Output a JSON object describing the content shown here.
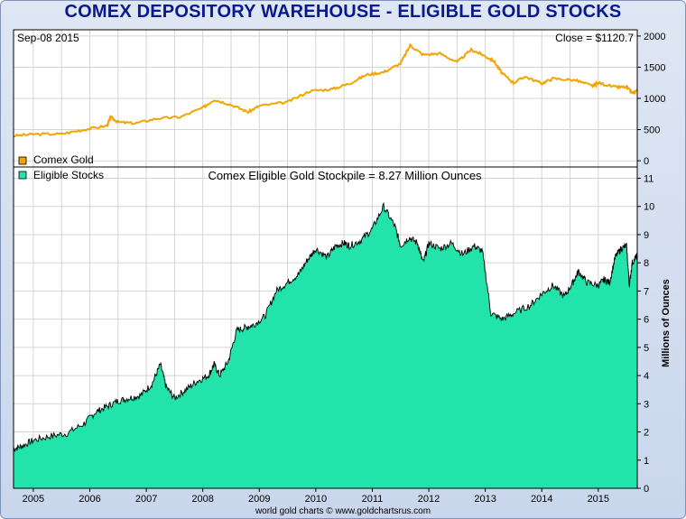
{
  "title": "COMEX DEPOSITORY WAREHOUSE - ELIGIBLE GOLD STOCKS",
  "footer": "world gold charts © www.goldchartsrus.com",
  "chart_data": [
    {
      "type": "line",
      "corner_left": "Sep-08  2015",
      "corner_right": "Close = $1120.7",
      "legend": "Comex Gold",
      "colors": {
        "series": "#f0a500"
      },
      "ylim": [
        -100,
        2100
      ],
      "y_ticks": [
        0,
        500,
        1000,
        1500,
        2000
      ],
      "xlim": [
        2004.65,
        2015.69
      ],
      "grid": true,
      "series": [
        {
          "name": "Comex Gold",
          "x": [
            2004.65,
            2005.0,
            2005.5,
            2005.9,
            2006.3,
            2006.37,
            2006.5,
            2006.8,
            2007.2,
            2007.6,
            2008.0,
            2008.2,
            2008.5,
            2008.8,
            2009.0,
            2009.5,
            2009.9,
            2010.3,
            2010.6,
            2010.9,
            2011.2,
            2011.5,
            2011.67,
            2011.9,
            2012.2,
            2012.5,
            2012.75,
            2012.95,
            2013.15,
            2013.3,
            2013.5,
            2013.7,
            2014.0,
            2014.2,
            2014.6,
            2014.9,
            2015.0,
            2015.3,
            2015.5,
            2015.6,
            2015.69
          ],
          "values": [
            400,
            425,
            430,
            500,
            560,
            700,
            620,
            600,
            680,
            700,
            850,
            980,
            900,
            780,
            880,
            940,
            1120,
            1150,
            1240,
            1380,
            1420,
            1560,
            1850,
            1700,
            1720,
            1580,
            1780,
            1700,
            1600,
            1400,
            1250,
            1350,
            1240,
            1320,
            1290,
            1200,
            1250,
            1180,
            1180,
            1090,
            1120
          ]
        }
      ]
    },
    {
      "type": "area",
      "title": "Comex Eligible Gold Stockpile = 8.27 Million Ounces",
      "legend": "Eligible Stocks",
      "ylabel": "Millions of Ounces",
      "colors": {
        "fill": "#22e3a9",
        "line": "#000000"
      },
      "ylim": [
        0,
        11.4
      ],
      "y_ticks": [
        0,
        1,
        2,
        3,
        4,
        5,
        6,
        7,
        8,
        9,
        10,
        11
      ],
      "x_ticks": [
        "2005",
        "2006",
        "2007",
        "2008",
        "2009",
        "2010",
        "2011",
        "2012",
        "2013",
        "2014",
        "2015"
      ],
      "xlim": [
        2004.65,
        2015.69
      ],
      "grid": true,
      "series": [
        {
          "name": "Eligible Stocks",
          "x": [
            2004.65,
            2004.8,
            2005.0,
            2005.3,
            2005.6,
            2005.9,
            2006.1,
            2006.3,
            2006.5,
            2006.7,
            2006.9,
            2007.1,
            2007.25,
            2007.35,
            2007.5,
            2007.7,
            2007.9,
            2008.1,
            2008.2,
            2008.3,
            2008.45,
            2008.6,
            2008.75,
            2008.9,
            2009.1,
            2009.3,
            2009.5,
            2009.7,
            2009.85,
            2010.0,
            2010.2,
            2010.35,
            2010.5,
            2010.6,
            2010.8,
            2011.0,
            2011.2,
            2011.4,
            2011.5,
            2011.65,
            2011.8,
            2011.9,
            2012.0,
            2012.2,
            2012.4,
            2012.6,
            2012.8,
            2012.95,
            2013.1,
            2013.3,
            2013.5,
            2013.8,
            2014.0,
            2014.2,
            2014.4,
            2014.55,
            2014.65,
            2014.8,
            2015.0,
            2015.1,
            2015.2,
            2015.3,
            2015.4,
            2015.5,
            2015.55,
            2015.6,
            2015.69
          ],
          "values": [
            1.4,
            1.5,
            1.7,
            1.85,
            1.95,
            2.3,
            2.7,
            2.9,
            3.1,
            3.2,
            3.3,
            3.7,
            4.4,
            3.6,
            3.2,
            3.5,
            3.8,
            4.0,
            4.4,
            4.0,
            4.5,
            5.6,
            5.7,
            5.8,
            6.1,
            7.0,
            7.3,
            7.6,
            8.1,
            8.5,
            8.2,
            8.6,
            8.7,
            8.6,
            8.8,
            9.2,
            10.0,
            9.3,
            8.6,
            8.9,
            8.7,
            8.0,
            8.7,
            8.5,
            8.7,
            8.3,
            8.6,
            8.4,
            6.2,
            6.0,
            6.2,
            6.5,
            6.9,
            7.2,
            6.8,
            7.3,
            7.7,
            7.3,
            7.2,
            7.4,
            7.3,
            8.2,
            8.5,
            8.6,
            7.2,
            8.0,
            8.27
          ]
        }
      ]
    }
  ]
}
